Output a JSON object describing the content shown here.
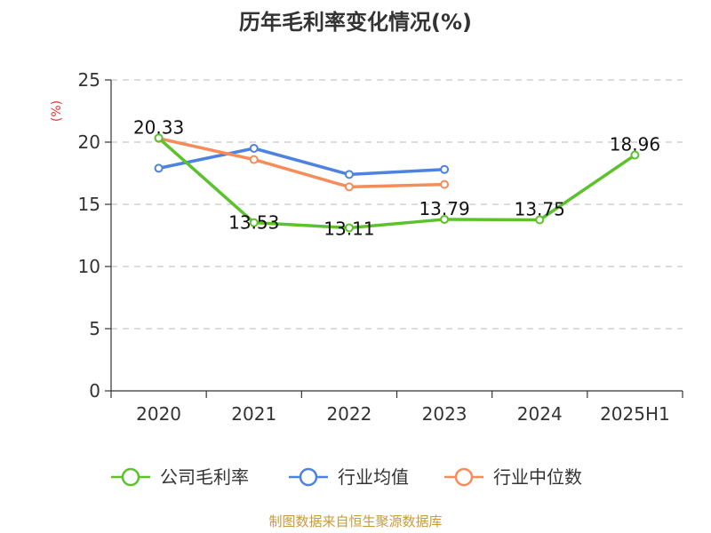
{
  "chart_data": {
    "type": "line",
    "title": "历年毛利率变化情况(%)",
    "ylabel": "(%)",
    "categories": [
      "2020",
      "2021",
      "2022",
      "2023",
      "2024",
      "2025H1"
    ],
    "ylim": [
      0,
      25
    ],
    "yticks": [
      0,
      5,
      10,
      15,
      20,
      25
    ],
    "grid": true,
    "legend_position": "bottom",
    "series": [
      {
        "name": "公司毛利率",
        "color": "#5cc22c",
        "values": [
          20.33,
          13.53,
          13.11,
          13.79,
          13.75,
          18.96
        ],
        "labels": [
          "20.33",
          "13.53",
          "13.11",
          "13.79",
          "13.75",
          "18.96"
        ]
      },
      {
        "name": "行业均值",
        "color": "#4e82e0",
        "values": [
          17.9,
          19.5,
          17.4,
          17.8,
          null,
          null
        ]
      },
      {
        "name": "行业中位数",
        "color": "#f58c5a",
        "values": [
          20.3,
          18.6,
          16.4,
          16.6,
          null,
          null
        ]
      }
    ],
    "source": "制图数据来自恒生聚源数据库"
  }
}
